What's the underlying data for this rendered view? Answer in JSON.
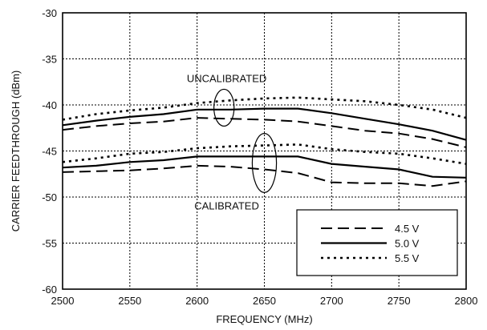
{
  "chart_data": {
    "type": "line",
    "title": "",
    "xlabel": "FREQUENCY (MHz)",
    "ylabel": "CARRIER FEEDTHROUGH (dBm)",
    "xlim": [
      2500,
      2800
    ],
    "ylim": [
      -60,
      -30
    ],
    "xticks": [
      "2500",
      "2550",
      "2600",
      "2650",
      "2700",
      "2750",
      "2800"
    ],
    "yticks": [
      "-30",
      "-35",
      "-40",
      "-45",
      "-50",
      "-55",
      "-60"
    ],
    "grid": true,
    "legend_position": "bottom-right",
    "x": [
      2500,
      2525,
      2550,
      2575,
      2600,
      2625,
      2650,
      2675,
      2700,
      2725,
      2750,
      2775,
      2800
    ],
    "series": [
      {
        "name": "4.5 V",
        "group": "uncalibrated",
        "style": "dashed",
        "values": [
          -42.7,
          -42.3,
          -42.0,
          -41.8,
          -41.4,
          -41.5,
          -41.6,
          -41.8,
          -42.3,
          -42.8,
          -43.1,
          -43.7,
          -44.6
        ]
      },
      {
        "name": "5.0 V",
        "group": "uncalibrated",
        "style": "solid",
        "values": [
          -42.2,
          -41.7,
          -41.3,
          -41.0,
          -40.5,
          -40.5,
          -40.4,
          -40.4,
          -40.9,
          -41.5,
          -42.1,
          -42.8,
          -43.8
        ]
      },
      {
        "name": "5.5 V",
        "group": "uncalibrated",
        "style": "dotted",
        "values": [
          -41.6,
          -41.0,
          -40.6,
          -40.3,
          -39.8,
          -39.5,
          -39.3,
          -39.2,
          -39.4,
          -39.6,
          -40.0,
          -40.5,
          -41.4
        ]
      },
      {
        "name": "4.5 V",
        "group": "calibrated",
        "style": "dashed",
        "values": [
          -47.3,
          -47.2,
          -47.1,
          -46.9,
          -46.6,
          -46.7,
          -47.0,
          -47.4,
          -48.4,
          -48.5,
          -48.5,
          -48.8,
          -48.3
        ]
      },
      {
        "name": "5.0 V",
        "group": "calibrated",
        "style": "solid",
        "values": [
          -46.8,
          -46.6,
          -46.2,
          -46.0,
          -45.6,
          -45.6,
          -45.6,
          -45.6,
          -46.4,
          -46.7,
          -47.0,
          -47.8,
          -47.9
        ]
      },
      {
        "name": "5.5 V",
        "group": "calibrated",
        "style": "dotted",
        "values": [
          -46.2,
          -45.8,
          -45.3,
          -45.1,
          -44.7,
          -44.5,
          -44.4,
          -44.3,
          -44.8,
          -45.1,
          -45.3,
          -45.8,
          -46.4
        ]
      }
    ],
    "annotations": [
      {
        "text": "UNCALIBRATED",
        "x": 2622,
        "y": -37.1
      },
      {
        "text": "CALIBRATED",
        "x": 2622,
        "y": -50.9
      }
    ],
    "ellipses": [
      {
        "cx": 2620,
        "cy": -40.3,
        "rx": 7.5,
        "ry": 2.0
      },
      {
        "cx": 2650,
        "cy": -46.3,
        "rx": 9.0,
        "ry": 3.2
      }
    ],
    "legend": [
      "4.5 V",
      "5.0 V",
      "5.5 V"
    ]
  }
}
